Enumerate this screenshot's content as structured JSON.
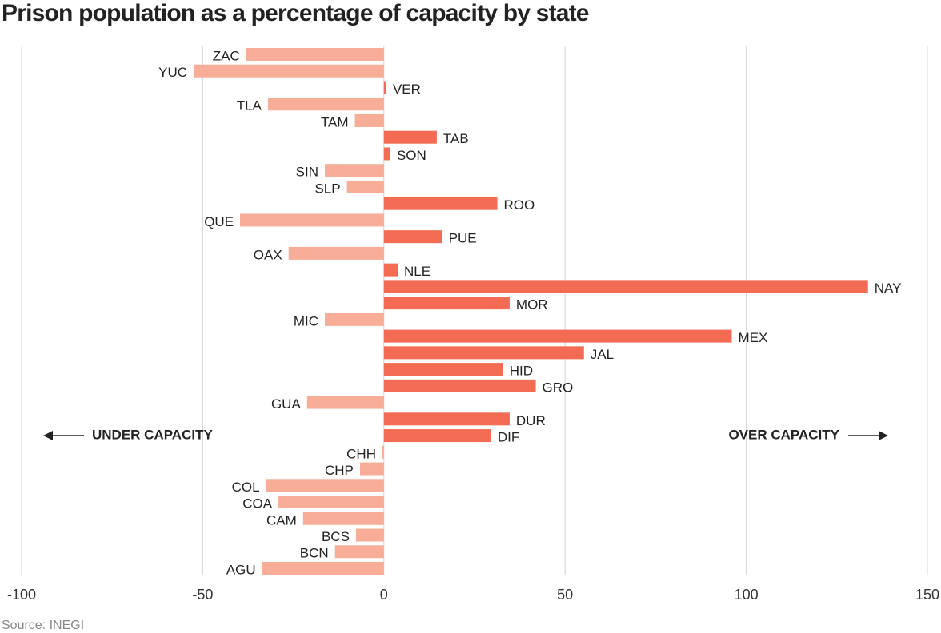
{
  "chart_data": {
    "type": "hbar_diverging",
    "title": "Prison population as a percentage of capacity by state",
    "source": "Source: INEGI",
    "annotations": [
      "UNDER CAPACITY",
      "OVER CAPACITY"
    ],
    "categories": [
      "ZAC",
      "YUC",
      "VER",
      "TLA",
      "TAM",
      "TAB",
      "SON",
      "SIN",
      "SLP",
      "ROO",
      "QUE",
      "PUE",
      "OAX",
      "NLE",
      "NAY",
      "MOR",
      "MIC",
      "MEX",
      "JAL",
      "HID",
      "GRO",
      "GUA",
      "DUR",
      "DIF",
      "CHH",
      "CHP",
      "COL",
      "COA",
      "CAM",
      "BCS",
      "BCN",
      "AGU"
    ],
    "values": [
      -38,
      -52.5,
      0.7,
      -32,
      -8,
      14.6,
      1.8,
      -16.3,
      -10.2,
      31.3,
      -39.7,
      16.1,
      -26.3,
      3.8,
      133.6,
      34.7,
      -16.3,
      96,
      55.2,
      32.9,
      41.9,
      -21.2,
      34.7,
      29.6,
      -0.4,
      -6.6,
      -32.5,
      -29.1,
      -22.3,
      -7.7,
      -13.5,
      -33.6
    ],
    "positive_color": "#f26b52",
    "negative_color": "#f7ad97",
    "xlim": [
      -100,
      150
    ],
    "xticks": [
      -100,
      -50,
      0,
      50,
      100,
      150
    ],
    "grid": true
  }
}
